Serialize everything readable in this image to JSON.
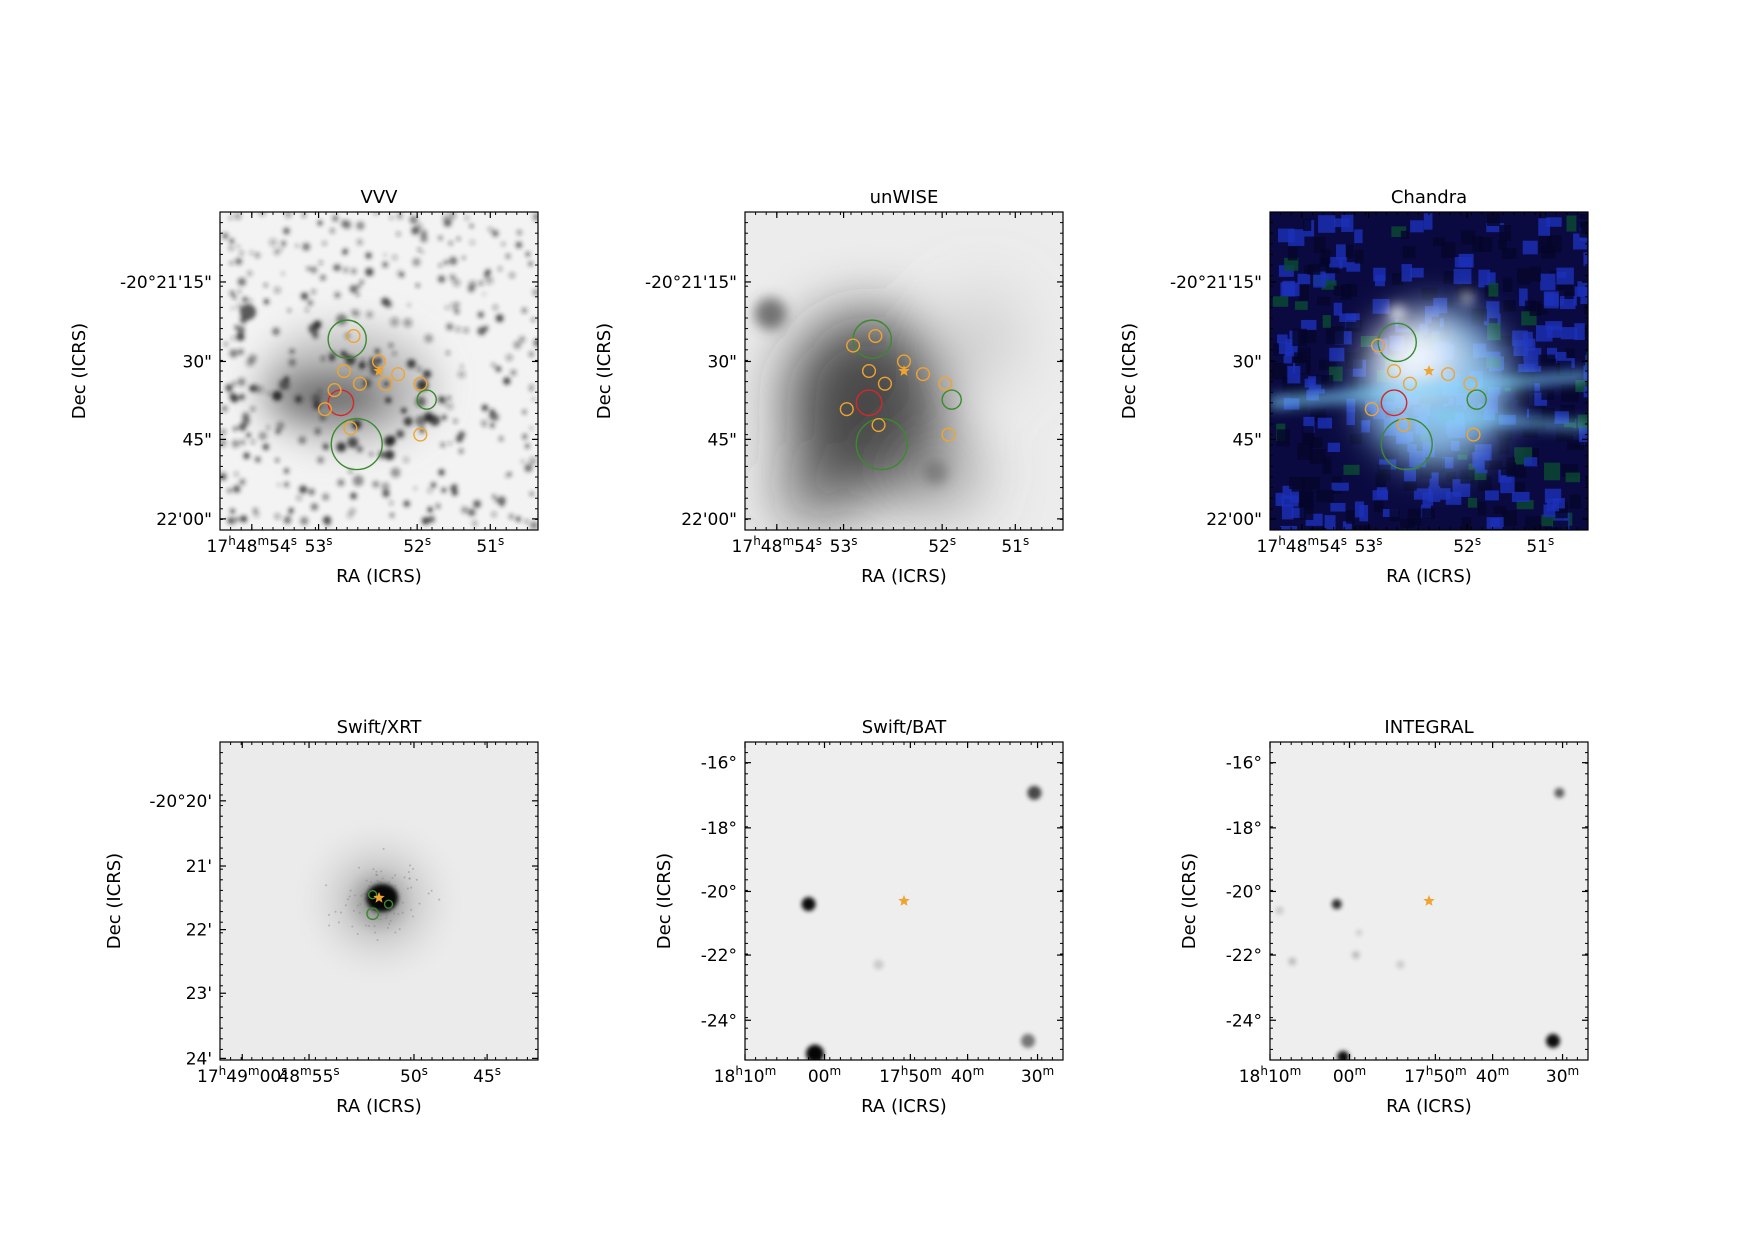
{
  "chart_data": [
    {
      "type": "image",
      "title": "VVV",
      "xlabel": "RA (ICRS)",
      "ylabel": "Dec (ICRS)",
      "xticks": [
        {
          "pos": 0.1,
          "label": "17h48m54s"
        },
        {
          "pos": 0.31,
          "label": "53s"
        },
        {
          "pos": 0.62,
          "label": "52s"
        },
        {
          "pos": 0.85,
          "label": "51s"
        }
      ],
      "yticks": [
        {
          "pos": 0.22,
          "label": "-20°21'15\""
        },
        {
          "pos": 0.47,
          "label": "30\""
        },
        {
          "pos": 0.715,
          "label": "45\""
        },
        {
          "pos": 0.965,
          "label": "22'00\""
        }
      ],
      "image_style": "stars",
      "markers": [
        {
          "kind": "circle",
          "color": "green",
          "x": 0.4,
          "y": 0.4,
          "r": 0.06
        },
        {
          "kind": "circle",
          "color": "green",
          "x": 0.43,
          "y": 0.73,
          "r": 0.08
        },
        {
          "kind": "circle",
          "color": "green",
          "x": 0.65,
          "y": 0.59,
          "r": 0.03
        },
        {
          "kind": "circle",
          "color": "red",
          "x": 0.38,
          "y": 0.6,
          "r": 0.04
        },
        {
          "kind": "circle",
          "color": "orange",
          "x": 0.42,
          "y": 0.39,
          "r": 0.02
        },
        {
          "kind": "circle",
          "color": "orange",
          "x": 0.39,
          "y": 0.5,
          "r": 0.02
        },
        {
          "kind": "circle",
          "color": "orange",
          "x": 0.44,
          "y": 0.54,
          "r": 0.02
        },
        {
          "kind": "circle",
          "color": "orange",
          "x": 0.36,
          "y": 0.56,
          "r": 0.02
        },
        {
          "kind": "circle",
          "color": "orange",
          "x": 0.33,
          "y": 0.62,
          "r": 0.02
        },
        {
          "kind": "circle",
          "color": "orange",
          "x": 0.41,
          "y": 0.68,
          "r": 0.02
        },
        {
          "kind": "circle",
          "color": "orange",
          "x": 0.5,
          "y": 0.47,
          "r": 0.02
        },
        {
          "kind": "circle",
          "color": "orange",
          "x": 0.56,
          "y": 0.51,
          "r": 0.02
        },
        {
          "kind": "circle",
          "color": "orange",
          "x": 0.52,
          "y": 0.54,
          "r": 0.02
        },
        {
          "kind": "circle",
          "color": "orange",
          "x": 0.63,
          "y": 0.54,
          "r": 0.02
        },
        {
          "kind": "circle",
          "color": "orange",
          "x": 0.63,
          "y": 0.7,
          "r": 0.02
        },
        {
          "kind": "star",
          "color": "orange",
          "x": 0.5,
          "y": 0.5
        }
      ]
    },
    {
      "type": "image",
      "title": "unWISE",
      "xlabel": "RA (ICRS)",
      "ylabel": "Dec (ICRS)",
      "xticks": [
        {
          "pos": 0.1,
          "label": "17h48m54s"
        },
        {
          "pos": 0.31,
          "label": "53s"
        },
        {
          "pos": 0.62,
          "label": "52s"
        },
        {
          "pos": 0.85,
          "label": "51s"
        }
      ],
      "yticks": [
        {
          "pos": 0.22,
          "label": "-20°21'15\""
        },
        {
          "pos": 0.47,
          "label": "30\""
        },
        {
          "pos": 0.715,
          "label": "45\""
        },
        {
          "pos": 0.965,
          "label": "22'00\""
        }
      ],
      "image_style": "blurred",
      "markers": [
        {
          "kind": "circle",
          "color": "green",
          "x": 0.4,
          "y": 0.4,
          "r": 0.06
        },
        {
          "kind": "circle",
          "color": "green",
          "x": 0.43,
          "y": 0.73,
          "r": 0.08
        },
        {
          "kind": "circle",
          "color": "green",
          "x": 0.65,
          "y": 0.59,
          "r": 0.03
        },
        {
          "kind": "circle",
          "color": "red",
          "x": 0.39,
          "y": 0.6,
          "r": 0.04
        },
        {
          "kind": "circle",
          "color": "orange",
          "x": 0.41,
          "y": 0.39,
          "r": 0.02
        },
        {
          "kind": "circle",
          "color": "orange",
          "x": 0.34,
          "y": 0.42,
          "r": 0.02
        },
        {
          "kind": "circle",
          "color": "orange",
          "x": 0.39,
          "y": 0.5,
          "r": 0.02
        },
        {
          "kind": "circle",
          "color": "orange",
          "x": 0.44,
          "y": 0.54,
          "r": 0.02
        },
        {
          "kind": "circle",
          "color": "orange",
          "x": 0.32,
          "y": 0.62,
          "r": 0.02
        },
        {
          "kind": "circle",
          "color": "orange",
          "x": 0.42,
          "y": 0.67,
          "r": 0.02
        },
        {
          "kind": "circle",
          "color": "orange",
          "x": 0.5,
          "y": 0.47,
          "r": 0.02
        },
        {
          "kind": "circle",
          "color": "orange",
          "x": 0.56,
          "y": 0.51,
          "r": 0.02
        },
        {
          "kind": "circle",
          "color": "orange",
          "x": 0.63,
          "y": 0.54,
          "r": 0.02
        },
        {
          "kind": "circle",
          "color": "orange",
          "x": 0.64,
          "y": 0.7,
          "r": 0.02
        },
        {
          "kind": "star",
          "color": "orange",
          "x": 0.5,
          "y": 0.5
        }
      ]
    },
    {
      "type": "image",
      "title": "Chandra",
      "xlabel": "RA (ICRS)",
      "ylabel": "Dec (ICRS)",
      "xticks": [
        {
          "pos": 0.1,
          "label": "17h48m54s"
        },
        {
          "pos": 0.31,
          "label": "53s"
        },
        {
          "pos": 0.62,
          "label": "52s"
        },
        {
          "pos": 0.85,
          "label": "51s"
        }
      ],
      "yticks": [
        {
          "pos": 0.22,
          "label": "-20°21'15\""
        },
        {
          "pos": 0.47,
          "label": "30\""
        },
        {
          "pos": 0.715,
          "label": "45\""
        },
        {
          "pos": 0.965,
          "label": "22'00\""
        }
      ],
      "image_style": "xray-rgb",
      "markers": [
        {
          "kind": "circle",
          "color": "green",
          "x": 0.4,
          "y": 0.41,
          "r": 0.06
        },
        {
          "kind": "circle",
          "color": "green",
          "x": 0.43,
          "y": 0.73,
          "r": 0.08
        },
        {
          "kind": "circle",
          "color": "green",
          "x": 0.65,
          "y": 0.59,
          "r": 0.03
        },
        {
          "kind": "circle",
          "color": "red",
          "x": 0.39,
          "y": 0.6,
          "r": 0.04
        },
        {
          "kind": "circle",
          "color": "orange",
          "x": 0.34,
          "y": 0.42,
          "r": 0.02
        },
        {
          "kind": "circle",
          "color": "orange",
          "x": 0.39,
          "y": 0.5,
          "r": 0.02
        },
        {
          "kind": "circle",
          "color": "orange",
          "x": 0.44,
          "y": 0.54,
          "r": 0.02
        },
        {
          "kind": "circle",
          "color": "orange",
          "x": 0.32,
          "y": 0.62,
          "r": 0.02
        },
        {
          "kind": "circle",
          "color": "orange",
          "x": 0.42,
          "y": 0.67,
          "r": 0.02
        },
        {
          "kind": "circle",
          "color": "orange",
          "x": 0.56,
          "y": 0.51,
          "r": 0.02
        },
        {
          "kind": "circle",
          "color": "orange",
          "x": 0.63,
          "y": 0.54,
          "r": 0.02
        },
        {
          "kind": "circle",
          "color": "orange",
          "x": 0.64,
          "y": 0.7,
          "r": 0.02
        },
        {
          "kind": "star",
          "color": "orange",
          "x": 0.5,
          "y": 0.5
        }
      ]
    },
    {
      "type": "image",
      "title": "Swift/XRT",
      "xlabel": "RA (ICRS)",
      "ylabel": "Dec (ICRS)",
      "xticks": [
        {
          "pos": 0.07,
          "label": "17h49m00s"
        },
        {
          "pos": 0.28,
          "label": "48m55s"
        },
        {
          "pos": 0.61,
          "label": "50s"
        },
        {
          "pos": 0.84,
          "label": "45s"
        }
      ],
      "yticks": [
        {
          "pos": 0.185,
          "label": "-20°20'"
        },
        {
          "pos": 0.39,
          "label": "21'"
        },
        {
          "pos": 0.59,
          "label": "22'"
        },
        {
          "pos": 0.79,
          "label": "23'"
        },
        {
          "pos": 0.995,
          "label": "24'"
        }
      ],
      "image_style": "xrt",
      "markers": [
        {
          "kind": "circle",
          "color": "green",
          "x": 0.48,
          "y": 0.54,
          "r": 0.018
        },
        {
          "kind": "circle",
          "color": "green",
          "x": 0.48,
          "y": 0.48,
          "r": 0.01
        },
        {
          "kind": "circle",
          "color": "green",
          "x": 0.53,
          "y": 0.51,
          "r": 0.01
        },
        {
          "kind": "star",
          "color": "orange",
          "x": 0.5,
          "y": 0.49
        }
      ]
    },
    {
      "type": "image",
      "title": "Swift/BAT",
      "xlabel": "RA (ICRS)",
      "ylabel": "Dec (ICRS)",
      "xticks": [
        {
          "pos": 0.0,
          "label": "18h10m"
        },
        {
          "pos": 0.25,
          "label": "00m"
        },
        {
          "pos": 0.52,
          "label": "17h50m"
        },
        {
          "pos": 0.7,
          "label": "40m"
        },
        {
          "pos": 0.92,
          "label": "30m"
        }
      ],
      "yticks": [
        {
          "pos": 0.065,
          "label": "-16°"
        },
        {
          "pos": 0.27,
          "label": "-18°"
        },
        {
          "pos": 0.47,
          "label": "-20°"
        },
        {
          "pos": 0.67,
          "label": "-22°"
        },
        {
          "pos": 0.875,
          "label": "-24°"
        }
      ],
      "image_style": "bat",
      "markers": [
        {
          "kind": "star",
          "color": "orange",
          "x": 0.5,
          "y": 0.5
        }
      ]
    },
    {
      "type": "image",
      "title": "INTEGRAL",
      "xlabel": "RA (ICRS)",
      "ylabel": "Dec (ICRS)",
      "xticks": [
        {
          "pos": 0.0,
          "label": "18h10m"
        },
        {
          "pos": 0.25,
          "label": "00m"
        },
        {
          "pos": 0.52,
          "label": "17h50m"
        },
        {
          "pos": 0.7,
          "label": "40m"
        },
        {
          "pos": 0.92,
          "label": "30m"
        }
      ],
      "yticks": [
        {
          "pos": 0.065,
          "label": "-16°"
        },
        {
          "pos": 0.27,
          "label": "-18°"
        },
        {
          "pos": 0.47,
          "label": "-20°"
        },
        {
          "pos": 0.67,
          "label": "-22°"
        },
        {
          "pos": 0.875,
          "label": "-24°"
        }
      ],
      "image_style": "integral",
      "markers": [
        {
          "kind": "star",
          "color": "orange",
          "x": 0.5,
          "y": 0.5
        }
      ]
    }
  ]
}
